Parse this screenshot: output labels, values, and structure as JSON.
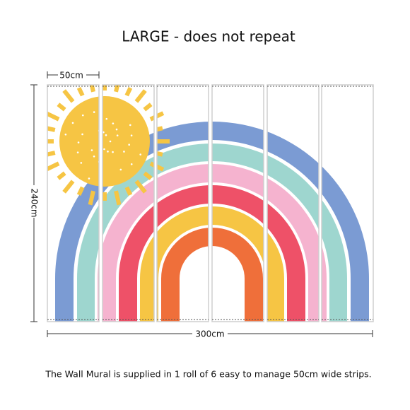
{
  "header": {
    "title": "LARGE - does not repeat"
  },
  "dimensions": {
    "strip_width": "50cm",
    "height": "240cm",
    "total_width": "300cm"
  },
  "caption": "The Wall Mural is supplied in 1 roll of 6 easy to manage 50cm wide strips."
}
